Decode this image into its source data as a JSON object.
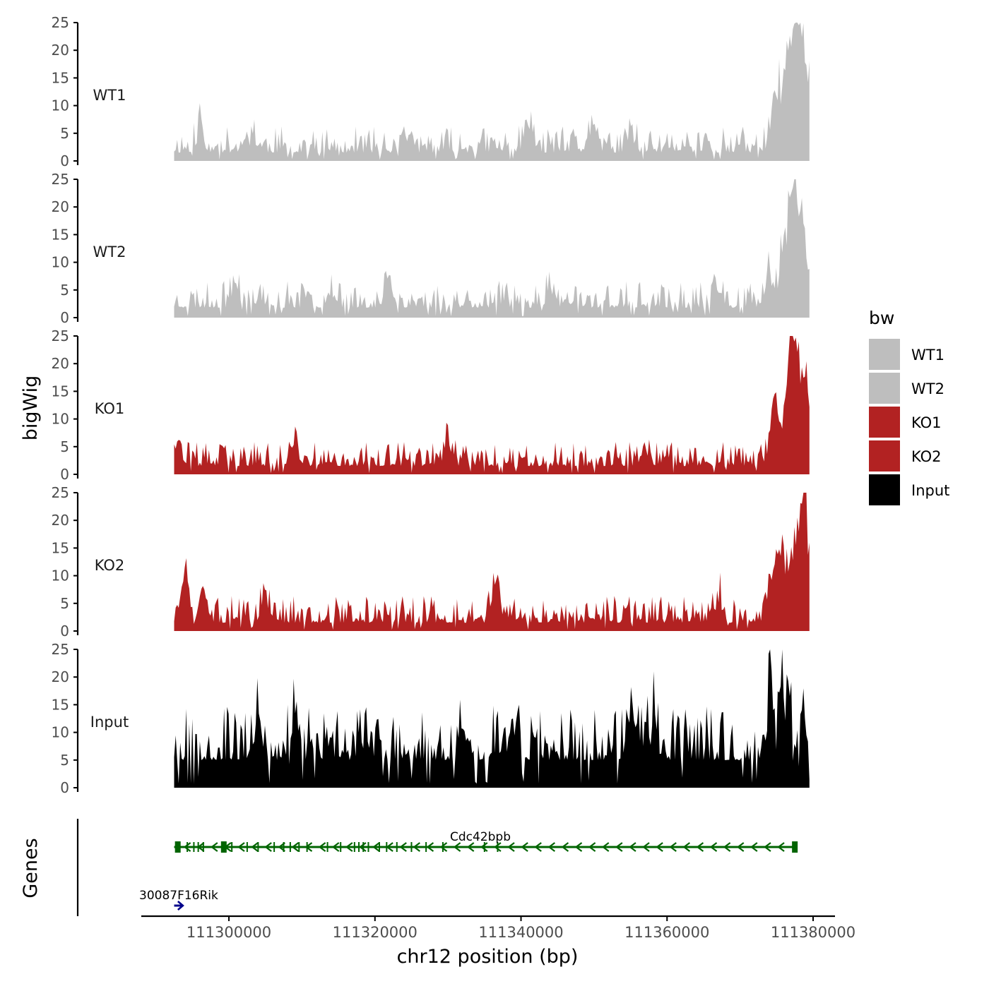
{
  "chart_data": {
    "type": "area",
    "chromosome": "chr12",
    "xlabel": "chr12 position (bp)",
    "ylabel_tracks": "bigWig",
    "ylabel_genes": "Genes",
    "xlim": [
      111288000,
      111383000
    ],
    "x_ticks": [
      111300000,
      111320000,
      111340000,
      111360000,
      111380000
    ],
    "x_tick_labels": [
      "111300000",
      "111320000",
      "111340000",
      "111360000",
      "111380000"
    ],
    "ylim": [
      0,
      25
    ],
    "y_ticks": [
      0,
      5,
      10,
      15,
      20,
      25
    ],
    "y_tick_labels": [
      "0",
      "5",
      "10",
      "15",
      "20",
      "25"
    ],
    "signal_range": [
      111292500,
      111379500
    ],
    "series": [
      {
        "name": "WT1",
        "color": "#bebebe",
        "baseline": 1.5,
        "noise": 2.2,
        "seed": 11,
        "peaks": [
          [
            111296000,
            5.5
          ],
          [
            111303000,
            4.5
          ],
          [
            111324000,
            3.5
          ],
          [
            111341000,
            6.5
          ],
          [
            111350000,
            3.5
          ],
          [
            111355000,
            3.0
          ],
          [
            111374500,
            8.5
          ],
          [
            111375500,
            11.0
          ],
          [
            111376500,
            14.5
          ],
          [
            111377500,
            23.5
          ],
          [
            111378300,
            20.0
          ],
          [
            111379200,
            15.0
          ]
        ]
      },
      {
        "name": "WT2",
        "color": "#bebebe",
        "baseline": 1.8,
        "noise": 2.2,
        "seed": 23,
        "peaks": [
          [
            111301000,
            4.5
          ],
          [
            111314000,
            3.5
          ],
          [
            111322000,
            6.0
          ],
          [
            111344000,
            4.0
          ],
          [
            111367000,
            4.5
          ],
          [
            111374000,
            7.5
          ],
          [
            111375800,
            12.0
          ],
          [
            111376900,
            17.0
          ],
          [
            111377700,
            21.0
          ],
          [
            111378700,
            16.5
          ]
        ]
      },
      {
        "name": "KO1",
        "color": "#b22222",
        "baseline": 1.5,
        "noise": 2.0,
        "seed": 37,
        "peaks": [
          [
            111292700,
            6.5
          ],
          [
            111309000,
            4.5
          ],
          [
            111330000,
            5.5
          ],
          [
            111357000,
            3.5
          ],
          [
            111374500,
            11.0
          ],
          [
            111375500,
            8.5
          ],
          [
            111376800,
            16.5
          ],
          [
            111377400,
            18.5
          ],
          [
            111378300,
            15.5
          ],
          [
            111379300,
            14.0
          ]
        ]
      },
      {
        "name": "KO2",
        "color": "#b22222",
        "baseline": 1.5,
        "noise": 2.2,
        "seed": 51,
        "peaks": [
          [
            111294000,
            9.0
          ],
          [
            111296500,
            8.0
          ],
          [
            111305000,
            6.0
          ],
          [
            111336500,
            9.5
          ],
          [
            111367000,
            5.5
          ],
          [
            111374500,
            10.5
          ],
          [
            111375700,
            15.5
          ],
          [
            111377000,
            13.0
          ],
          [
            111378000,
            19.0
          ],
          [
            111379000,
            23.5
          ]
        ]
      },
      {
        "name": "Input",
        "color": "#000000",
        "baseline": 5.0,
        "noise": 4.5,
        "seed": 67,
        "peaks": [
          [
            111304000,
            7.5
          ],
          [
            111309000,
            8.5
          ],
          [
            111320000,
            7.0
          ],
          [
            111332000,
            6.5
          ],
          [
            111339000,
            8.5
          ],
          [
            111355000,
            11.5
          ],
          [
            111358000,
            7.5
          ],
          [
            111374000,
            19.5
          ],
          [
            111375500,
            11.5
          ],
          [
            111376500,
            14.0
          ],
          [
            111378500,
            6.5
          ]
        ]
      }
    ],
    "genes_track": {
      "genes": [
        {
          "name": "Cdc42bpb",
          "color": "#006400",
          "strand": "-",
          "start": 111292500,
          "end": 111377500,
          "exons": [
            111293000,
            111294300,
            111295200,
            111295800,
            111296500,
            111299300,
            111300400,
            111302500,
            111304000,
            111306200,
            111307500,
            111308400,
            111309600,
            111310700,
            111313500,
            111315300,
            111317200,
            111317800,
            111318400,
            111319100,
            111320600,
            111321600,
            111323000,
            111325000,
            111327000,
            111329300,
            111335000,
            111336800,
            111377500
          ]
        },
        {
          "name": "30087F16Rik",
          "color": "#00008b",
          "strand": "+",
          "start": 111292500,
          "end": 111293600,
          "exons": []
        }
      ]
    },
    "legend": {
      "title": "bw",
      "placement": "right",
      "entries": [
        {
          "label": "WT1",
          "color": "#bebebe"
        },
        {
          "label": "WT2",
          "color": "#bebebe"
        },
        {
          "label": "KO1",
          "color": "#b22222"
        },
        {
          "label": "KO2",
          "color": "#b22222"
        },
        {
          "label": "Input",
          "color": "#000000"
        }
      ]
    }
  }
}
